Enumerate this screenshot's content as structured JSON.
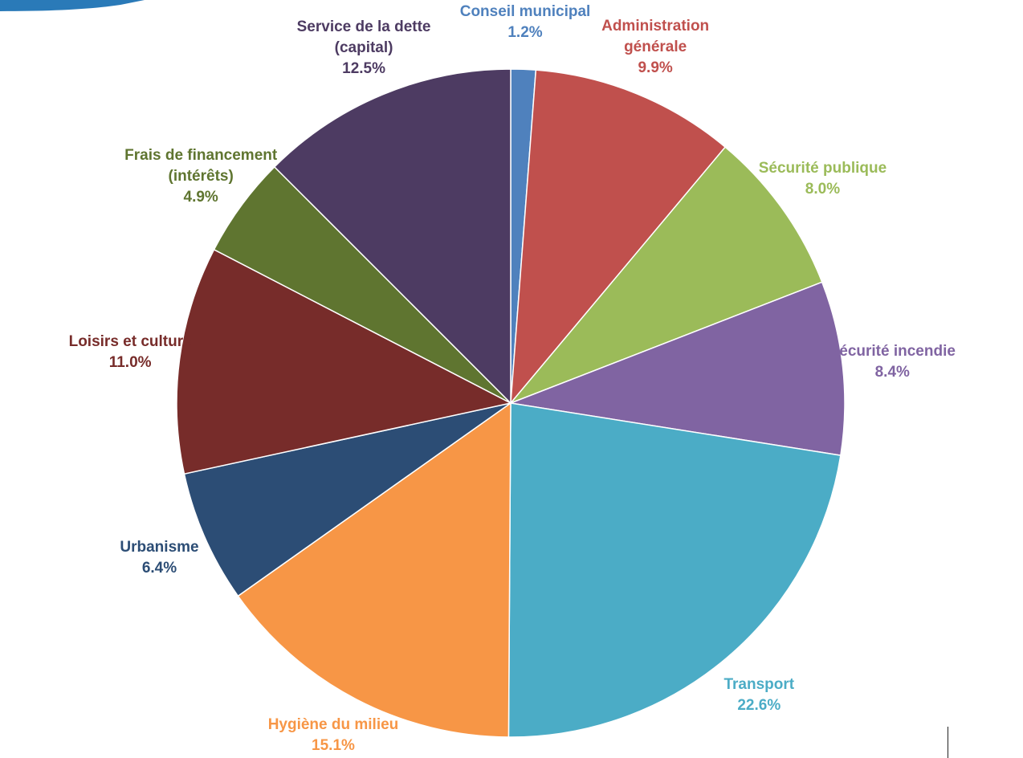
{
  "chart_data": {
    "type": "pie",
    "start_angle_deg": 0,
    "direction": "clockwise",
    "slices": [
      {
        "label_lines": [
          "Conseil municipal"
        ],
        "value": 1.2,
        "value_label": "1.2%",
        "color": "#4f81bd"
      },
      {
        "label_lines": [
          "Administration",
          "générale"
        ],
        "value": 9.9,
        "value_label": "9.9%",
        "color": "#c0504d"
      },
      {
        "label_lines": [
          "Sécurité publique"
        ],
        "value": 8.0,
        "value_label": "8.0%",
        "color": "#9bbb59"
      },
      {
        "label_lines": [
          "Sécurité incendie"
        ],
        "value": 8.4,
        "value_label": "8.4%",
        "color": "#8064a2"
      },
      {
        "label_lines": [
          "Transport"
        ],
        "value": 22.6,
        "value_label": "22.6%",
        "color": "#4bacc6"
      },
      {
        "label_lines": [
          "Hygiène du milieu"
        ],
        "value": 15.1,
        "value_label": "15.1%",
        "color": "#f79646"
      },
      {
        "label_lines": [
          "Urbanisme"
        ],
        "value": 6.4,
        "value_label": "6.4%",
        "color": "#2c4d75"
      },
      {
        "label_lines": [
          "Loisirs et culture"
        ],
        "value": 11.0,
        "value_label": "11.0%",
        "color": "#772c2a"
      },
      {
        "label_lines": [
          "Frais de financement",
          "(intérêts)"
        ],
        "value": 4.9,
        "value_label": "4.9%",
        "color": "#5f7530"
      },
      {
        "label_lines": [
          "Service de la dette",
          "(capital)"
        ],
        "value": 12.5,
        "value_label": "12.5%",
        "color": "#4d3b62"
      }
    ]
  }
}
